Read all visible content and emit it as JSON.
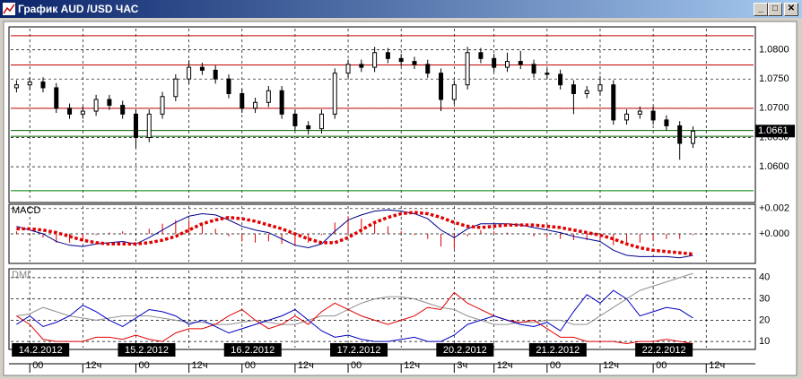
{
  "window": {
    "title": "График AUD /USD ЧАС"
  },
  "chart_data": [
    {
      "type": "candlestick",
      "x": [
        -3,
        0,
        3,
        6,
        9,
        12,
        15,
        18,
        21,
        24,
        27,
        30,
        33,
        36,
        39,
        42,
        45,
        48,
        51,
        54,
        57,
        60,
        63,
        66,
        69,
        72,
        75,
        78,
        81,
        84,
        87,
        90,
        93,
        96,
        99,
        102,
        105,
        108,
        111,
        114,
        117,
        120,
        123,
        126,
        129,
        132,
        135,
        138,
        141,
        144,
        147,
        150
      ],
      "open": [
        1.0735,
        1.074,
        1.0745,
        1.0735,
        1.07,
        1.069,
        1.0695,
        1.0715,
        1.0705,
        1.069,
        1.065,
        1.069,
        1.072,
        1.075,
        1.077,
        1.0765,
        1.075,
        1.0725,
        1.07,
        1.071,
        1.073,
        1.069,
        1.067,
        1.0665,
        1.069,
        1.076,
        1.0775,
        1.077,
        1.0795,
        1.0785,
        1.078,
        1.0775,
        1.076,
        1.0715,
        1.074,
        1.0795,
        1.0785,
        1.077,
        1.078,
        1.0775,
        1.076,
        1.0758,
        1.074,
        1.0725,
        1.073,
        1.074,
        1.068,
        1.069,
        1.0695,
        1.068,
        1.067,
        1.064
      ],
      "high": [
        1.0748,
        1.0753,
        1.0753,
        1.0743,
        1.0708,
        1.0703,
        1.0723,
        1.0723,
        1.0713,
        1.0698,
        1.0698,
        1.0728,
        1.0758,
        1.0782,
        1.0778,
        1.0773,
        1.0758,
        1.0733,
        1.0718,
        1.0738,
        1.0738,
        1.0698,
        1.0678,
        1.0698,
        1.0768,
        1.0783,
        1.0783,
        1.0805,
        1.0803,
        1.0793,
        1.0788,
        1.0783,
        1.0768,
        1.0748,
        1.0805,
        1.0803,
        1.0793,
        1.0795,
        1.0798,
        1.0783,
        1.0768,
        1.0766,
        1.0748,
        1.0738,
        1.0755,
        1.0748,
        1.0698,
        1.0703,
        1.0703,
        1.0688,
        1.0678,
        1.0669
      ],
      "low": [
        1.0727,
        1.0732,
        1.0727,
        1.0692,
        1.0682,
        1.0682,
        1.0687,
        1.0697,
        1.0682,
        1.0632,
        1.0642,
        1.0682,
        1.0712,
        1.0742,
        1.0757,
        1.0742,
        1.0717,
        1.0692,
        1.0692,
        1.0702,
        1.0682,
        1.0662,
        1.0655,
        1.0657,
        1.0682,
        1.0752,
        1.0762,
        1.0762,
        1.0777,
        1.0772,
        1.0767,
        1.0752,
        1.0695,
        1.0707,
        1.0732,
        1.0777,
        1.0762,
        1.0762,
        1.0767,
        1.0752,
        1.075,
        1.0732,
        1.069,
        1.0717,
        1.0722,
        1.0672,
        1.0672,
        1.0682,
        1.0672,
        1.0662,
        1.0612,
        1.0632
      ],
      "close": [
        1.074,
        1.0745,
        1.0735,
        1.07,
        1.069,
        1.0695,
        1.0715,
        1.0705,
        1.069,
        1.065,
        1.069,
        1.072,
        1.075,
        1.077,
        1.0765,
        1.075,
        1.0725,
        1.07,
        1.071,
        1.073,
        1.069,
        1.067,
        1.0665,
        1.069,
        1.076,
        1.0775,
        1.077,
        1.0795,
        1.0785,
        1.078,
        1.0775,
        1.076,
        1.0715,
        1.074,
        1.0795,
        1.0785,
        1.077,
        1.078,
        1.0775,
        1.076,
        1.0758,
        1.074,
        1.0725,
        1.073,
        1.074,
        1.068,
        1.069,
        1.0695,
        1.068,
        1.067,
        1.064,
        1.0661
      ],
      "xlim": [
        -4.3,
        163.7
      ],
      "ylim": [
        1.0542,
        1.0836
      ],
      "yticks": [
        {
          "value": 1.06,
          "label": "1.0600"
        },
        {
          "value": 1.065,
          "label": "1.0650"
        },
        {
          "value": 1.07,
          "label": "1.0700"
        },
        {
          "value": 1.075,
          "label": "1.0750"
        },
        {
          "value": 1.08,
          "label": "1.0800"
        }
      ],
      "grid": true,
      "levels": [
        1.0824,
        1.0774,
        1.07,
        1.0662,
        1.0652,
        1.0559
      ],
      "level_colors": [
        "#c00000",
        "#c00000",
        "#c00000",
        "#006000",
        "#006000",
        "#008000"
      ],
      "xticks": [
        {
          "value": 0,
          "label": "00"
        },
        {
          "value": 12,
          "label": "12ч"
        },
        {
          "value": 24,
          "label": "00"
        },
        {
          "value": 36,
          "label": "12ч"
        },
        {
          "value": 48,
          "label": "00"
        },
        {
          "value": 60,
          "label": "12ч"
        },
        {
          "value": 72,
          "label": "00"
        },
        {
          "value": 84,
          "label": "12ч"
        },
        {
          "value": 96,
          "label": "3ч"
        },
        {
          "value": 105,
          "label": "12ч"
        },
        {
          "value": 117,
          "label": "00"
        },
        {
          "value": 129,
          "label": "12ч"
        },
        {
          "value": 141,
          "label": "00"
        },
        {
          "value": 153,
          "label": "12ч"
        }
      ],
      "date_ticks": [
        {
          "value": 0,
          "label": "14.2.2012"
        },
        {
          "value": 24,
          "label": "15.2.2012"
        },
        {
          "value": 48,
          "label": "16.2.2012"
        },
        {
          "value": 72,
          "label": "17.2.2012"
        },
        {
          "value": 96,
          "label": "20.2.2012"
        },
        {
          "value": 117,
          "label": "21.2.2012"
        },
        {
          "value": 141,
          "label": "22.2.2012"
        }
      ]
    },
    {
      "type": "line",
      "title": "MACD",
      "x": [
        -3,
        0,
        3,
        6,
        9,
        12,
        15,
        18,
        21,
        24,
        27,
        30,
        33,
        36,
        39,
        42,
        45,
        48,
        51,
        54,
        57,
        60,
        63,
        66,
        69,
        72,
        75,
        78,
        81,
        84,
        87,
        90,
        93,
        96,
        99,
        102,
        105,
        108,
        111,
        114,
        117,
        120,
        123,
        126,
        129,
        132,
        135,
        138,
        141,
        144,
        147,
        150
      ],
      "xlim": [
        -4.3,
        163.7
      ],
      "ylim": [
        -0.0022,
        0.0022
      ],
      "yticks": [
        {
          "value": 0,
          "label": "+0.000"
        },
        {
          "value": 0.002,
          "label": "+0.002"
        }
      ],
      "histogram": {
        "color": "#e00000",
        "values": [
          0.0002,
          -0.0001,
          -0.0003,
          -0.0007,
          -0.0007,
          -0.0005,
          -0.0001,
          0.0001,
          0.0002,
          0.0,
          0.0004,
          0.0008,
          0.0011,
          0.0011,
          0.0008,
          0.0004,
          -0.0002,
          -0.0006,
          -0.0007,
          -0.0006,
          -0.0008,
          -0.0009,
          -0.0007,
          -0.0001,
          0.0009,
          0.0014,
          0.0012,
          0.0009,
          0.0006,
          0.0002,
          -0.0001,
          -0.0004,
          -0.001,
          -0.0012,
          -0.0002,
          0.0003,
          0.0002,
          0.0001,
          0.0,
          -0.0002,
          -0.0003,
          -0.0004,
          -0.0005,
          -0.0005,
          -0.0005,
          -0.0009,
          -0.0009,
          -0.0007,
          -0.0005,
          -0.0004,
          -0.0004,
          -0.0001
        ]
      },
      "series": [
        {
          "color": "#00008b",
          "values": [
            0.0006,
            0.0003,
            0.0,
            -0.0006,
            -0.0009,
            -0.001,
            -0.0008,
            -0.0007,
            -0.0006,
            -0.0008,
            -0.0003,
            0.0003,
            0.0009,
            0.0014,
            0.0016,
            0.0015,
            0.0011,
            0.0006,
            0.0003,
            0.0001,
            -0.0004,
            -0.0009,
            -0.0011,
            -0.0008,
            0.0002,
            0.0011,
            0.0015,
            0.0018,
            0.0019,
            0.0018,
            0.0016,
            0.0012,
            0.0003,
            -0.0003,
            0.0004,
            0.0008,
            0.0008,
            0.0008,
            0.0007,
            0.0005,
            0.0003,
            0.0001,
            -0.0002,
            -0.0004,
            -0.0006,
            -0.0013,
            -0.0017,
            -0.0018,
            -0.0018,
            -0.0018,
            -0.0019,
            -0.0017
          ]
        },
        {
          "color": "#e00000",
          "dotted": true,
          "values": [
            0.0004,
            0.0004,
            0.0003,
            0.0001,
            -0.0002,
            -0.0005,
            -0.0007,
            -0.0008,
            -0.0008,
            -0.0008,
            -0.0007,
            -0.0005,
            -0.0002,
            0.0003,
            0.0008,
            0.0011,
            0.0013,
            0.0012,
            0.001,
            0.0007,
            0.0004,
            0.0,
            -0.0004,
            -0.0007,
            -0.0007,
            -0.0003,
            0.0003,
            0.0009,
            0.0013,
            0.0016,
            0.0017,
            0.0016,
            0.0013,
            0.0009,
            0.0006,
            0.0005,
            0.0006,
            0.0007,
            0.0007,
            0.0007,
            0.0006,
            0.0005,
            0.0003,
            0.0001,
            -0.0001,
            -0.0004,
            -0.0008,
            -0.0011,
            -0.0013,
            -0.0014,
            -0.0015,
            -0.0016
          ]
        }
      ]
    },
    {
      "type": "line",
      "title": "DMI",
      "x": [
        -3,
        0,
        3,
        6,
        9,
        12,
        15,
        18,
        21,
        24,
        27,
        30,
        33,
        36,
        39,
        42,
        45,
        48,
        51,
        54,
        57,
        60,
        63,
        66,
        69,
        72,
        75,
        78,
        81,
        84,
        87,
        90,
        93,
        96,
        99,
        102,
        105,
        108,
        111,
        114,
        117,
        120,
        123,
        126,
        129,
        132,
        135,
        138,
        141,
        144,
        147,
        150
      ],
      "xlim": [
        -4.3,
        163.7
      ],
      "ylim": [
        7.1,
        43.3
      ],
      "yticks": [
        10,
        20,
        30,
        40
      ],
      "grid": true,
      "series": [
        {
          "color": "#909090",
          "values": [
            22,
            23,
            26,
            24,
            22,
            21,
            20,
            21,
            22,
            22,
            22,
            21,
            20,
            19,
            19,
            18,
            18,
            19,
            20,
            19,
            18,
            18,
            20,
            22,
            22,
            25,
            28,
            30,
            31,
            31,
            30,
            28,
            26,
            25,
            22,
            20,
            18,
            18,
            19,
            19,
            20,
            20,
            18,
            18,
            22,
            26,
            30,
            34,
            36,
            38,
            40,
            42
          ]
        },
        {
          "color": "#e00000",
          "values": [
            22,
            18,
            11,
            10,
            10,
            10,
            12,
            12,
            11,
            13,
            11,
            10,
            14,
            16,
            16,
            18,
            22,
            25,
            20,
            16,
            18,
            22,
            18,
            24,
            28,
            25,
            22,
            20,
            18,
            20,
            22,
            26,
            25,
            33,
            28,
            25,
            22,
            20,
            19,
            20,
            16,
            12,
            12,
            10,
            10,
            10,
            9,
            10,
            10,
            11,
            10,
            9
          ]
        },
        {
          "color": "#0000c0",
          "values": [
            18,
            22,
            17,
            19,
            22,
            27,
            24,
            20,
            17,
            21,
            25,
            24,
            22,
            18,
            20,
            17,
            14,
            16,
            18,
            20,
            22,
            25,
            20,
            15,
            12,
            13,
            11,
            10,
            10,
            11,
            12,
            10,
            10,
            13,
            18,
            20,
            22,
            20,
            18,
            17,
            19,
            15,
            24,
            32,
            28,
            34,
            30,
            22,
            24,
            26,
            25,
            21
          ]
        }
      ]
    }
  ]
}
